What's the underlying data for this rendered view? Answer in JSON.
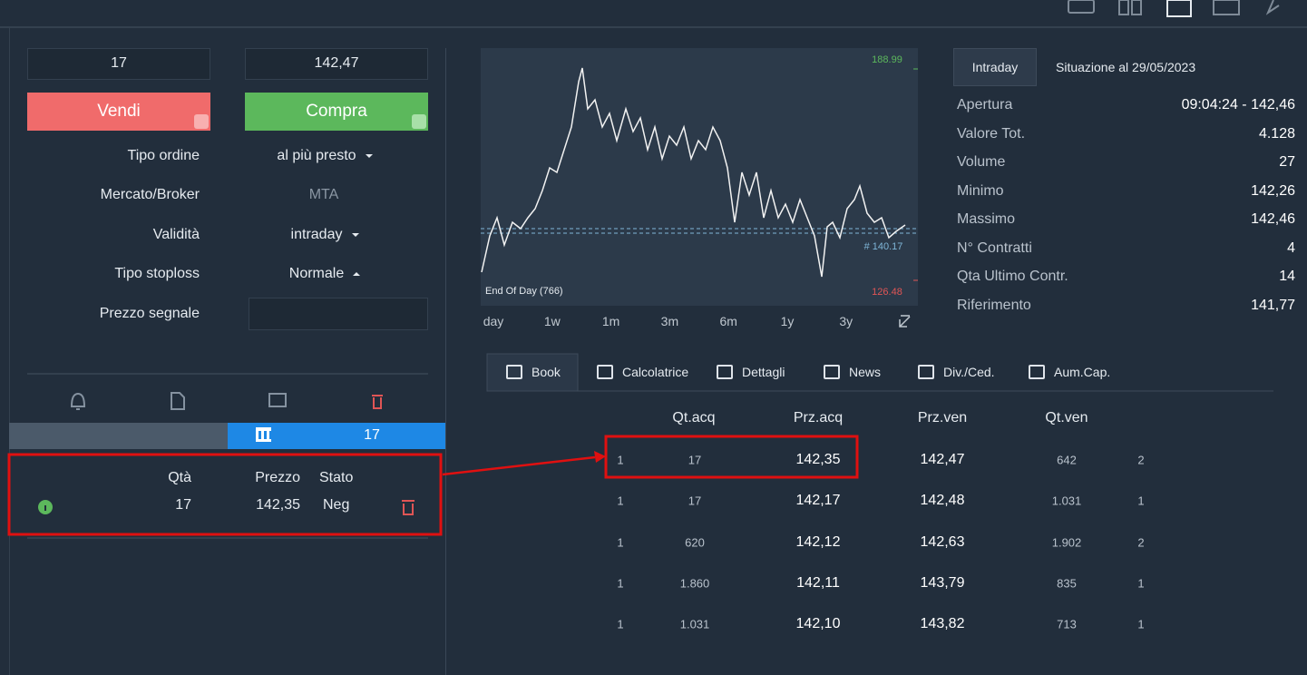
{
  "order": {
    "quantity": "17",
    "price": "142,47",
    "sell": "Vendi",
    "buy": "Compra",
    "fields": [
      {
        "label": "Tipo ordine",
        "value": "al più presto"
      },
      {
        "label": "Mercato/Broker",
        "value": "MTA"
      },
      {
        "label": "Validità",
        "value": "intraday"
      },
      {
        "label": "Tipo stoploss",
        "value": "Normale"
      },
      {
        "label": "Prezzo segnale"
      }
    ]
  },
  "position_bar": {
    "quantity": "17"
  },
  "orders": {
    "headers": [
      "Qtà",
      "Prezzo",
      "Stato"
    ],
    "rows": [
      [
        "17",
        "142,35",
        "Neg"
      ]
    ]
  },
  "chart": {
    "max_label": "188.99",
    "min_label": "126.48",
    "marker_label": "# 140.17",
    "footer": "End Of Day (766)",
    "ranges": [
      "day",
      "1w",
      "1m",
      "3m",
      "6m",
      "1y",
      "3y"
    ]
  },
  "info": {
    "tabs": [
      "Intraday",
      "Situazione al 29/05/2023"
    ],
    "rows": [
      [
        "Apertura",
        "09:04:24 - 142,46"
      ],
      [
        "Valore Tot.",
        "4.128"
      ],
      [
        "Volume",
        "27"
      ],
      [
        "Minimo",
        "142,26"
      ],
      [
        "Massimo",
        "142,46"
      ],
      [
        "N° Contratti",
        "4"
      ],
      [
        "Qta Ultimo Contr.",
        "14"
      ],
      [
        "Riferimento",
        "141,77"
      ]
    ]
  },
  "book": {
    "tabs": [
      "Book",
      "Calcolatrice",
      "Dettagli",
      "News",
      "Div./Ced.",
      "Aum.Cap."
    ],
    "headers": [
      "Qt.acq",
      "Prz.acq",
      "Prz.ven",
      "Qt.ven"
    ],
    "rows": [
      [
        "1",
        "17",
        "142,35",
        "142,47",
        "642",
        "2"
      ],
      [
        "1",
        "17",
        "142,17",
        "142,48",
        "1.031",
        "1"
      ],
      [
        "1",
        "620",
        "142,12",
        "142,63",
        "1.902",
        "2"
      ],
      [
        "1",
        "1.860",
        "142,11",
        "143,79",
        "835",
        "1"
      ],
      [
        "1",
        "1.031",
        "142,10",
        "143,82",
        "713",
        "1"
      ]
    ]
  }
}
